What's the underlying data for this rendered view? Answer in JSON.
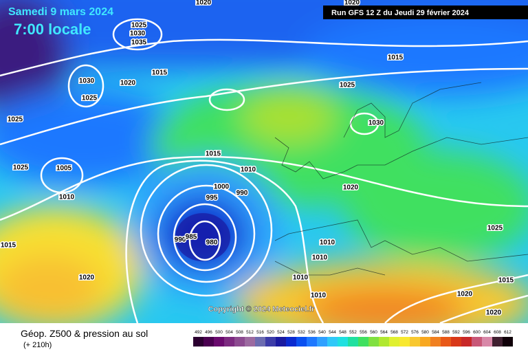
{
  "header": {
    "date": "Samedi 9 mars 2024",
    "time": "7:00 locale",
    "run": "Run GFS 12 Z du Jeudi 29 février 2024"
  },
  "copyright": "Copyright © 2024 Meteociel.fr",
  "footer": {
    "title": "Géop. Z500 & pression au sol",
    "lead": "(+ 210h)"
  },
  "isobar_labels": [
    "1020",
    "1025",
    "1030",
    "1035",
    "1030",
    "1025",
    "1020",
    "1015",
    "1025",
    "1025",
    "1005",
    "1010",
    "1015",
    "1020",
    "1015",
    "1010",
    "1000",
    "995",
    "990",
    "990",
    "985",
    "980",
    "1010",
    "1010",
    "1010",
    "1010",
    "1025",
    "1015",
    "1030",
    "1020",
    "1020",
    "1025",
    "1015",
    "1020",
    "1020"
  ],
  "scale": {
    "values": [
      492,
      496,
      500,
      504,
      508,
      512,
      516,
      520,
      524,
      528,
      532,
      536,
      540,
      544,
      548,
      552,
      556,
      560,
      564,
      568,
      572,
      576,
      580,
      584,
      588,
      592,
      596,
      600,
      604,
      608,
      612
    ],
    "colors": [
      "#2b0030",
      "#4a0050",
      "#6a0a6e",
      "#7c2a80",
      "#8c4a90",
      "#9c6aa0",
      "#6c6cb0",
      "#3c3ca8",
      "#1a1aa0",
      "#0a2ad0",
      "#0a50f0",
      "#1e78ff",
      "#30a0ff",
      "#30c8f8",
      "#20e0e0",
      "#20e0a0",
      "#40e060",
      "#80e040",
      "#b0e830",
      "#e0f030",
      "#f8e830",
      "#f8c830",
      "#f8a820",
      "#f08020",
      "#e85818",
      "#d83818",
      "#c82828",
      "#c85878",
      "#d888a8",
      "#402030",
      "#100008"
    ]
  }
}
